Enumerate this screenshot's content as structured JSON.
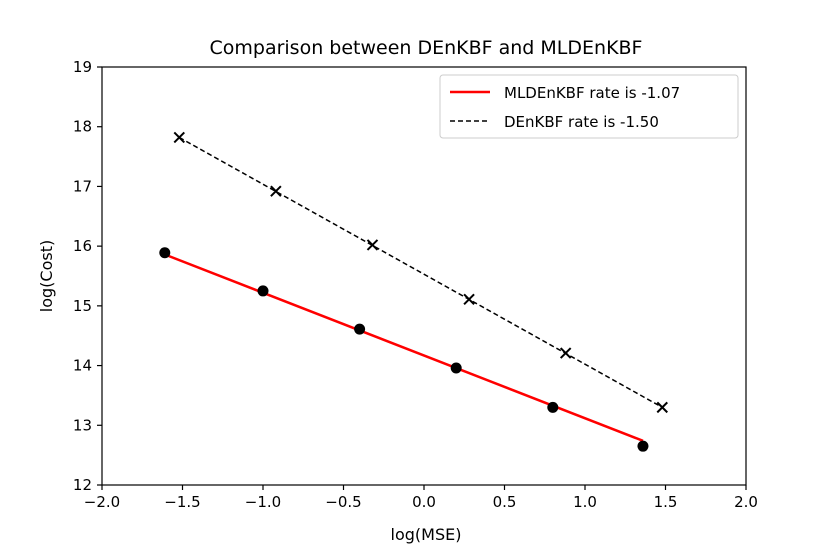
{
  "chart_data": {
    "type": "line",
    "title": "Comparison between DEnKBF and MLDEnKBF",
    "xlabel": "log(MSE)",
    "ylabel": "log(Cost)",
    "xlim": [
      -2.0,
      2.0
    ],
    "ylim": [
      12,
      19
    ],
    "xticks": [
      "−2.0",
      "−1.5",
      "−1.0",
      "−0.5",
      "0.0",
      "0.5",
      "1.0",
      "1.5",
      "2.0"
    ],
    "yticks": [
      "12",
      "13",
      "14",
      "15",
      "16",
      "17",
      "18",
      "19"
    ],
    "grid": false,
    "legend_position": "top-right",
    "series": [
      {
        "name": "MLDEnKBF rate is -1.07",
        "color": "#ff0000",
        "line_style": "solid",
        "marker": "circle",
        "points": [
          {
            "x": -1.61,
            "y": 15.89
          },
          {
            "x": -1.0,
            "y": 15.25
          },
          {
            "x": -0.4,
            "y": 14.61
          },
          {
            "x": 0.2,
            "y": 13.96
          },
          {
            "x": 0.8,
            "y": 13.3
          },
          {
            "x": 1.36,
            "y": 12.65
          }
        ],
        "fit_line": [
          {
            "x": -1.61,
            "y": 15.86
          },
          {
            "x": 1.36,
            "y": 12.74
          }
        ]
      },
      {
        "name": "DEnKBF rate is -1.50",
        "color": "#000000",
        "line_style": "dashed",
        "marker": "x",
        "points": [
          {
            "x": -1.52,
            "y": 17.82
          },
          {
            "x": -0.92,
            "y": 16.92
          },
          {
            "x": -0.32,
            "y": 16.02
          },
          {
            "x": 0.28,
            "y": 15.11
          },
          {
            "x": 0.88,
            "y": 14.21
          },
          {
            "x": 1.48,
            "y": 13.3
          }
        ],
        "fit_line": [
          {
            "x": -1.52,
            "y": 17.82
          },
          {
            "x": 1.48,
            "y": 13.3
          }
        ]
      }
    ]
  }
}
